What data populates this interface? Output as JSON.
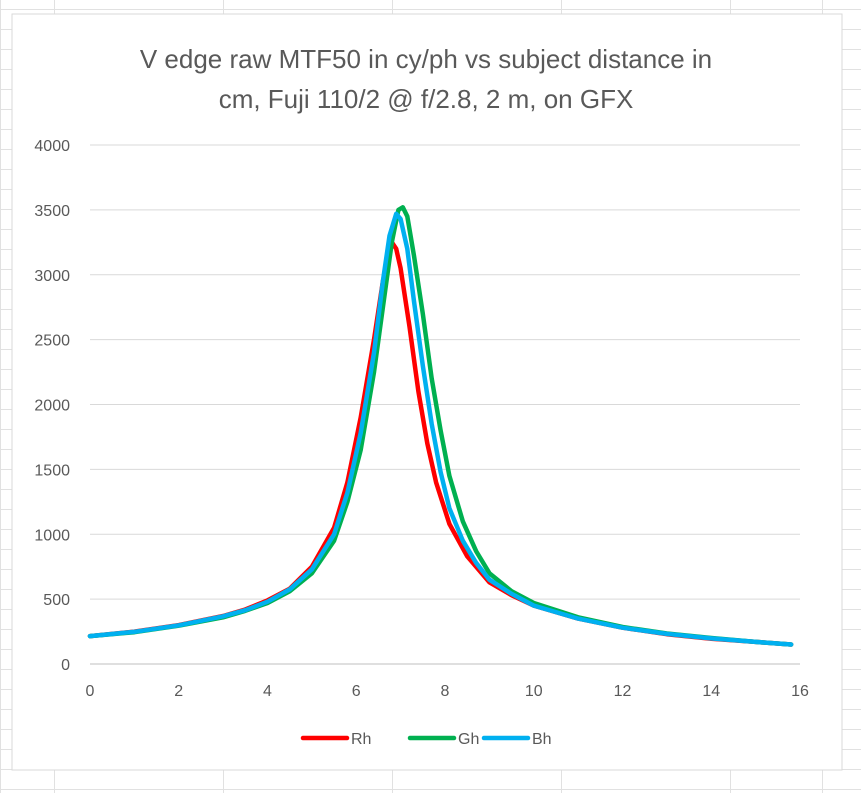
{
  "chart_data": {
    "type": "line",
    "title_lines": [
      "V edge raw MTF50 in cy/ph vs subject distance in",
      "cm, Fuji 110/2 @ f/2.8, 2 m, on GFX"
    ],
    "xlabel": "",
    "ylabel": "",
    "xlim": [
      0,
      16
    ],
    "ylim": [
      0,
      4000
    ],
    "x_ticks": [
      "0",
      "2",
      "4",
      "6",
      "8",
      "10",
      "12",
      "14",
      "16"
    ],
    "y_ticks": [
      "0",
      "500",
      "1000",
      "1500",
      "2000",
      "2500",
      "3000",
      "3500",
      "4000"
    ],
    "grid": "horizontal",
    "legend_position": "bottom",
    "colors": {
      "grid": "#d9d9d9",
      "text": "#595959",
      "sheet_grid": "#e1e1e1",
      "border": "#d9d9d9"
    },
    "series": [
      {
        "name": "Rh",
        "color": "#ff0000",
        "points": [
          [
            0,
            215
          ],
          [
            1,
            250
          ],
          [
            2,
            300
          ],
          [
            3,
            370
          ],
          [
            3.5,
            420
          ],
          [
            4,
            490
          ],
          [
            4.5,
            580
          ],
          [
            5,
            750
          ],
          [
            5.5,
            1050
          ],
          [
            5.8,
            1400
          ],
          [
            6.1,
            1900
          ],
          [
            6.4,
            2500
          ],
          [
            6.6,
            2950
          ],
          [
            6.8,
            3250
          ],
          [
            6.9,
            3200
          ],
          [
            7.0,
            3050
          ],
          [
            7.2,
            2600
          ],
          [
            7.4,
            2100
          ],
          [
            7.6,
            1700
          ],
          [
            7.8,
            1400
          ],
          [
            8.1,
            1080
          ],
          [
            8.5,
            830
          ],
          [
            9,
            630
          ],
          [
            9.5,
            530
          ],
          [
            10,
            450
          ],
          [
            11,
            350
          ],
          [
            12,
            280
          ],
          [
            13,
            230
          ],
          [
            14,
            195
          ],
          [
            15,
            170
          ],
          [
            15.8,
            150
          ]
        ]
      },
      {
        "name": "Gh",
        "color": "#00b050",
        "points": [
          [
            0,
            215
          ],
          [
            1,
            245
          ],
          [
            2,
            295
          ],
          [
            3,
            360
          ],
          [
            3.5,
            410
          ],
          [
            4,
            470
          ],
          [
            4.5,
            560
          ],
          [
            5,
            700
          ],
          [
            5.5,
            950
          ],
          [
            5.8,
            1250
          ],
          [
            6.1,
            1650
          ],
          [
            6.4,
            2250
          ],
          [
            6.6,
            2750
          ],
          [
            6.8,
            3250
          ],
          [
            6.95,
            3500
          ],
          [
            7.05,
            3520
          ],
          [
            7.15,
            3450
          ],
          [
            7.3,
            3150
          ],
          [
            7.5,
            2700
          ],
          [
            7.7,
            2200
          ],
          [
            7.9,
            1800
          ],
          [
            8.1,
            1450
          ],
          [
            8.4,
            1100
          ],
          [
            8.7,
            870
          ],
          [
            9,
            700
          ],
          [
            9.5,
            560
          ],
          [
            10,
            470
          ],
          [
            11,
            360
          ],
          [
            12,
            285
          ],
          [
            13,
            235
          ],
          [
            14,
            200
          ],
          [
            15,
            170
          ],
          [
            15.8,
            150
          ]
        ]
      },
      {
        "name": "Bh",
        "color": "#00b0f0",
        "points": [
          [
            0,
            215
          ],
          [
            1,
            248
          ],
          [
            2,
            298
          ],
          [
            3,
            368
          ],
          [
            3.5,
            415
          ],
          [
            4,
            480
          ],
          [
            4.5,
            575
          ],
          [
            5,
            730
          ],
          [
            5.5,
            1000
          ],
          [
            5.8,
            1320
          ],
          [
            6.1,
            1780
          ],
          [
            6.4,
            2400
          ],
          [
            6.6,
            2950
          ],
          [
            6.75,
            3300
          ],
          [
            6.9,
            3470
          ],
          [
            7.0,
            3430
          ],
          [
            7.15,
            3200
          ],
          [
            7.3,
            2800
          ],
          [
            7.5,
            2300
          ],
          [
            7.7,
            1850
          ],
          [
            7.9,
            1480
          ],
          [
            8.1,
            1200
          ],
          [
            8.4,
            950
          ],
          [
            8.7,
            780
          ],
          [
            9,
            650
          ],
          [
            9.5,
            540
          ],
          [
            10,
            450
          ],
          [
            11,
            350
          ],
          [
            12,
            280
          ],
          [
            13,
            232
          ],
          [
            14,
            197
          ],
          [
            15,
            170
          ],
          [
            15.8,
            150
          ]
        ]
      }
    ]
  }
}
